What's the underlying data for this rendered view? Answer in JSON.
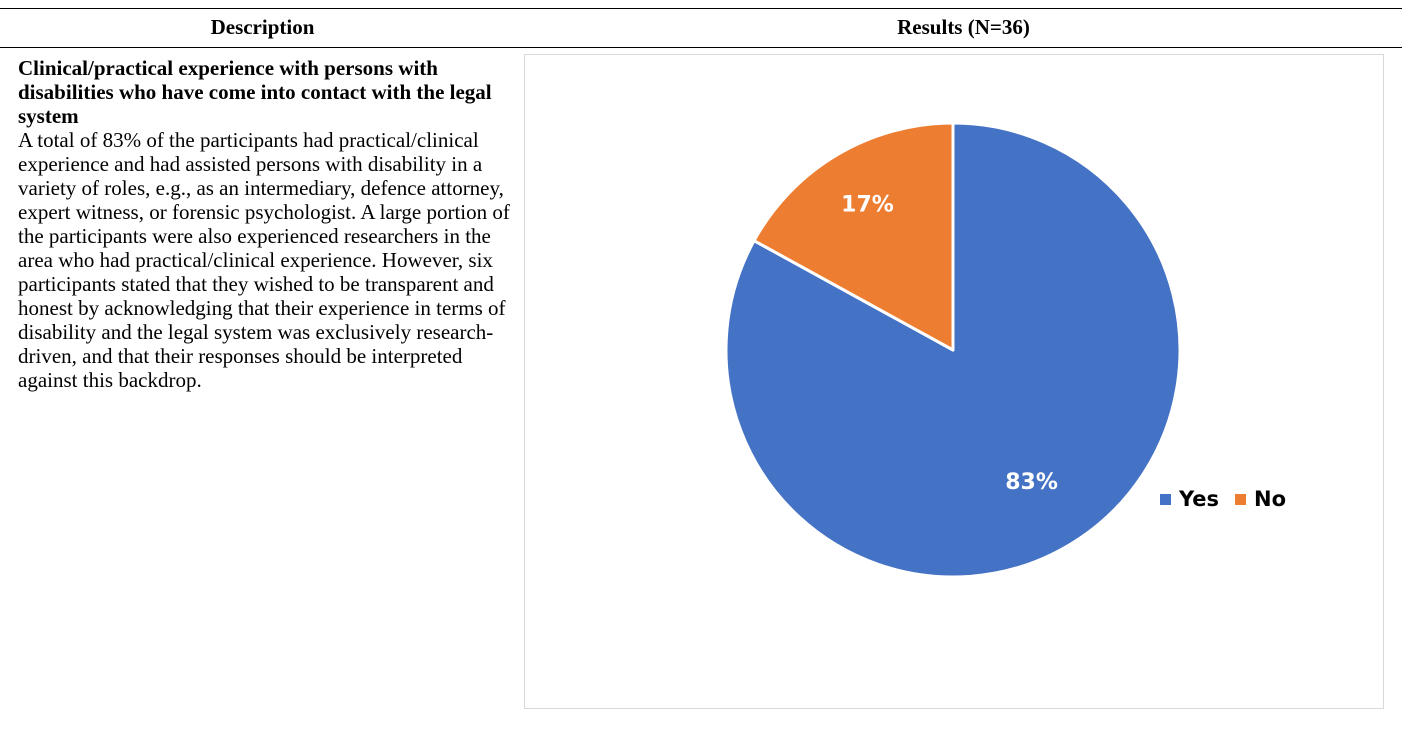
{
  "table": {
    "headers": {
      "description": "Description",
      "results": "Results (N=36)"
    },
    "description_heading": "Clinical/practical experience with persons with disabilities who have come into contact with the legal system",
    "description_body": "A total of 83% of the participants had practical/clinical experience and had assisted persons with disability in a variety of roles, e.g., as an intermediary, defence attorney, expert witness, or forensic psychologist. A large portion of the participants were also experienced researchers in the area who had practical/clinical experience. However, six participants stated that they wished to be transparent and honest by acknowledging that their experience in terms of disability and the legal system was exclusively research-driven, and that their responses should be interpreted against this backdrop."
  },
  "chart_data": {
    "type": "pie",
    "categories": [
      "Yes",
      "No"
    ],
    "values": [
      83,
      17
    ],
    "labels": [
      "83%",
      "17%"
    ],
    "colors": [
      "#4472C4",
      "#ED7D31"
    ],
    "legend": "right",
    "title": ""
  }
}
